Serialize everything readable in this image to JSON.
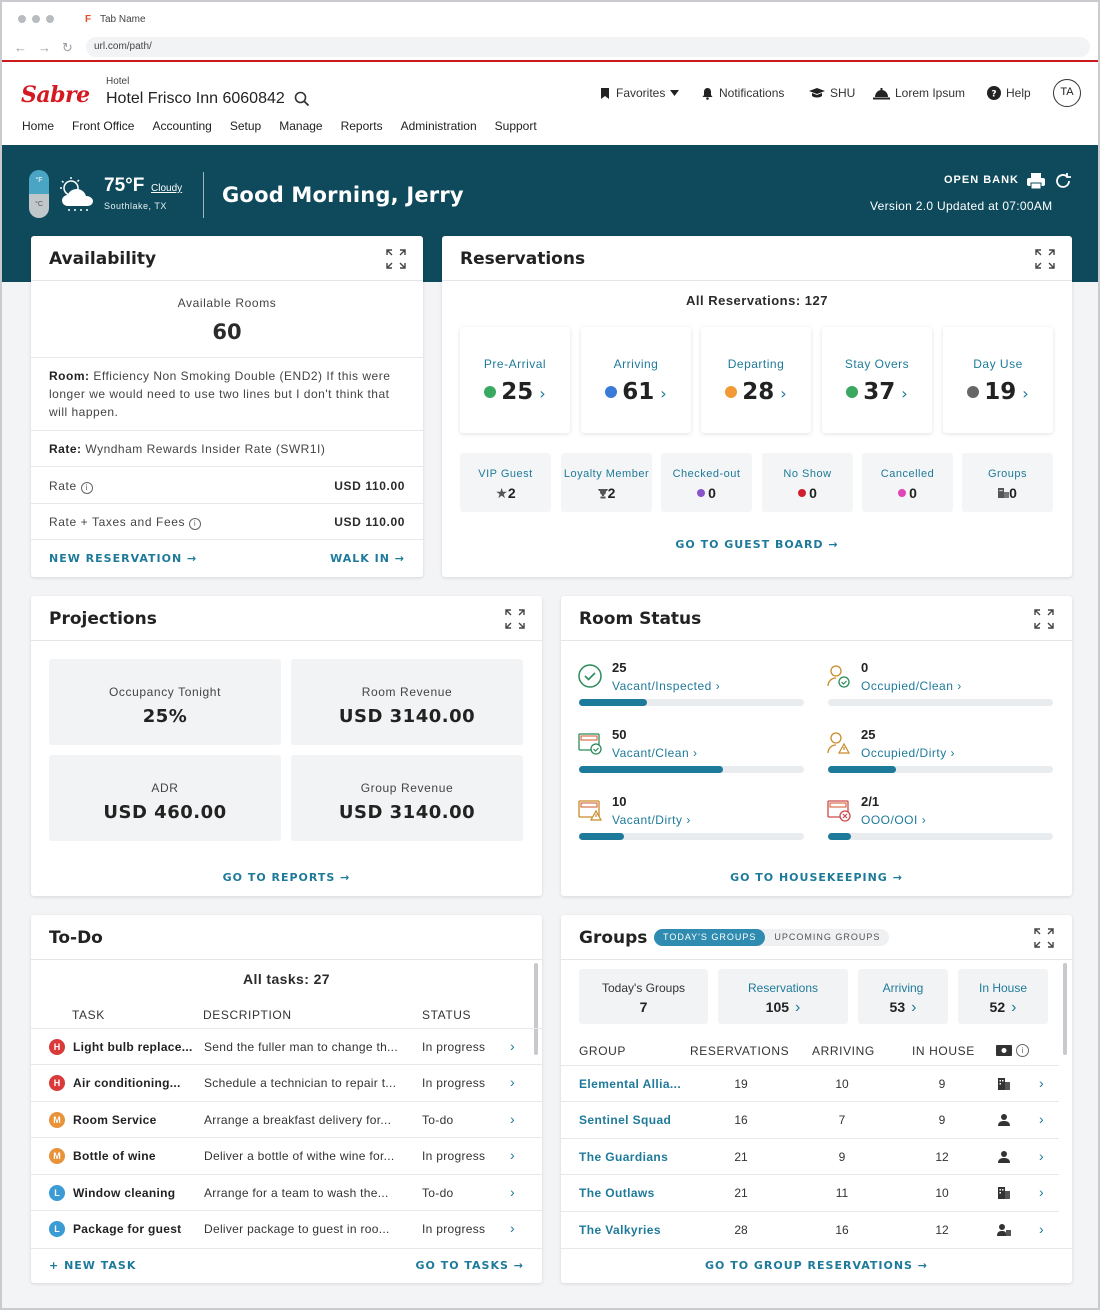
{
  "browser": {
    "tab_name": "Tab Name",
    "url": "url.com/path/"
  },
  "header": {
    "logo": "Sabre",
    "hotel_label": "Hotel",
    "hotel_name": "Hotel Frisco Inn 6060842",
    "menu": [
      "Home",
      "Front Office",
      "Accounting",
      "Setup",
      "Manage",
      "Reports",
      "Administration",
      "Support"
    ],
    "favorites": "Favorites",
    "notifications": "Notifications",
    "shu": "SHU",
    "user": "Lorem Ipsum",
    "help": "Help",
    "avatar": "TA"
  },
  "banner": {
    "temp_f_unit": "°F",
    "temp_c_unit": "°C",
    "temperature": "75°F",
    "condition": "Cloudy",
    "location": "Southlake, TX",
    "greeting": "Good Morning, Jerry",
    "open_bank": "OPEN BANK",
    "version": "Version 2.0  Updated at 07:00AM"
  },
  "availability": {
    "title": "Availability",
    "available_label": "Available Rooms",
    "available_value": "60",
    "room_label": "Room:",
    "room_text": "Efficiency Non Smoking Double (END2) If this were longer we would need to use two lines but I don't think that will happen.",
    "rate_line_label": "Rate:",
    "rate_line_text": "Wyndham Rewards Insider Rate (SWR1I)",
    "rate_label": "Rate",
    "rate_value": "USD 110.00",
    "rate_taxes_label": "Rate + Taxes and Fees",
    "rate_taxes_value": "USD 110.00",
    "new_reservation": "NEW RESERVATION",
    "walk_in": "WALK IN"
  },
  "reservations": {
    "title": "Reservations",
    "all": "All Reservations: 127",
    "tiles": [
      {
        "label": "Pre-Arrival",
        "value": "25",
        "color": "#3aa860"
      },
      {
        "label": "Arriving",
        "value": "61",
        "color": "#3a7bd5"
      },
      {
        "label": "Departing",
        "value": "28",
        "color": "#f29a38"
      },
      {
        "label": "Stay Overs",
        "value": "37",
        "color": "#3aa860"
      },
      {
        "label": "Day Use",
        "value": "19",
        "color": "#666666"
      }
    ],
    "small": [
      {
        "label": "VIP Guest",
        "value": "2",
        "icon": "star-icon",
        "glyph": "★"
      },
      {
        "label": "Loyalty Member",
        "value": "2",
        "icon": "trophy-icon",
        "glyph": "🏆"
      },
      {
        "label": "Checked-out",
        "value": "0",
        "color": "#8a54c9"
      },
      {
        "label": "No Show",
        "value": "0",
        "color": "#d11f2f"
      },
      {
        "label": "Cancelled",
        "value": "0",
        "color": "#e046b7"
      },
      {
        "label": "Groups",
        "value": "0",
        "icon": "groups-icon",
        "glyph": "▚"
      }
    ],
    "guest_board": "GO TO GUEST BOARD"
  },
  "projections": {
    "title": "Projections",
    "tiles": [
      {
        "label": "Occupancy Tonight",
        "value": "25%"
      },
      {
        "label": "Room Revenue",
        "value": "USD 3140.00"
      },
      {
        "label": "ADR",
        "value": "USD 460.00"
      },
      {
        "label": "Group Revenue",
        "value": "USD 3140.00"
      }
    ],
    "reports": "GO TO REPORTS"
  },
  "room_status": {
    "title": "Room Status",
    "items": [
      {
        "value": "25",
        "label": "Vacant/Inspected",
        "fill": 0.3
      },
      {
        "value": "0",
        "label": "Occupied/Clean",
        "fill": 0.0
      },
      {
        "value": "50",
        "label": "Vacant/Clean",
        "fill": 0.64
      },
      {
        "value": "25",
        "label": "Occupied/Dirty",
        "fill": 0.3
      },
      {
        "value": "10",
        "label": "Vacant/Dirty",
        "fill": 0.2
      },
      {
        "value": "2/1",
        "label": "OOO/OOI",
        "fill": 0.1
      }
    ],
    "housekeeping": "GO TO HOUSEKEEPING"
  },
  "todo": {
    "title": "To-Do",
    "all": "All tasks: 27",
    "headers": [
      "TASK",
      "DESCRIPTION",
      "STATUS"
    ],
    "rows": [
      {
        "pri": "H",
        "color": "#d93a3a",
        "task": "Light bulb replace...",
        "desc": "Send the fuller man to change th...",
        "status": "In progress"
      },
      {
        "pri": "H",
        "color": "#d93a3a",
        "task": "Air conditioning...",
        "desc": "Schedule a technician to repair t...",
        "status": "In progress"
      },
      {
        "pri": "M",
        "color": "#e8923a",
        "task": "Room Service",
        "desc": "Arrange a breakfast delivery for...",
        "status": "To-do"
      },
      {
        "pri": "M",
        "color": "#e8923a",
        "task": "Bottle of wine",
        "desc": "Deliver a bottle of withe wine for...",
        "status": "In progress"
      },
      {
        "pri": "L",
        "color": "#3a9bd5",
        "task": "Window cleaning",
        "desc": "Arrange for a team to wash the...",
        "status": "To-do"
      },
      {
        "pri": "L",
        "color": "#3a9bd5",
        "task": "Package for guest",
        "desc": "Deliver package to guest in roo...",
        "status": "In progress"
      }
    ],
    "new_task": "NEW TASK",
    "tasks": "GO TO TASKS"
  },
  "groups": {
    "title": "Groups",
    "tab_today": "TODAY'S GROUPS",
    "tab_upcoming": "UPCOMING GROUPS",
    "tiles": [
      {
        "label": "Today's Groups",
        "value": "7"
      },
      {
        "label": "Reservations",
        "value": "105"
      },
      {
        "label": "Arriving",
        "value": "53"
      },
      {
        "label": "In House",
        "value": "52"
      }
    ],
    "headers": [
      "GROUP",
      "RESERVATIONS",
      "ARRIVING",
      "IN HOUSE"
    ],
    "rows": [
      {
        "name": "Elemental Allia...",
        "res": "19",
        "arr": "10",
        "inh": "9",
        "icon": "building-icon"
      },
      {
        "name": "Sentinel Squad",
        "res": "16",
        "arr": "7",
        "inh": "9",
        "icon": "person-icon"
      },
      {
        "name": "The Guardians",
        "res": "21",
        "arr": "9",
        "inh": "12",
        "icon": "person-icon"
      },
      {
        "name": "The Outlaws",
        "res": "21",
        "arr": "11",
        "inh": "10",
        "icon": "building-icon"
      },
      {
        "name": "The Valkyries",
        "res": "28",
        "arr": "16",
        "inh": "12",
        "icon": "person-building-icon"
      }
    ],
    "group_res": "GO TO GROUP RESERVATIONS"
  }
}
